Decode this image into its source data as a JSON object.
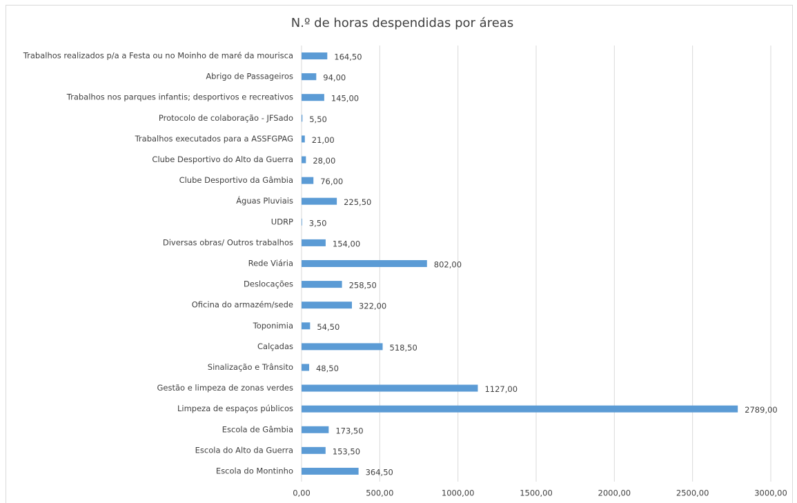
{
  "chart_data": {
    "type": "bar",
    "orientation": "horizontal",
    "title": "N.º de horas despendidas por áreas",
    "categories": [
      "Trabalhos realizados p/a a Festa ou no Moinho de maré da mourisca",
      "Abrigo de Passageiros",
      "Trabalhos nos parques infantis; desportivos e recreativos",
      "Protocolo de colaboração - JFSado",
      "Trabalhos executados para a ASSFGPAG",
      "Clube Desportivo do Alto da Guerra",
      "Clube Desportivo da Gâmbia",
      "Águas Pluviais",
      "UDRP",
      "Diversas obras/ Outros trabalhos",
      "Rede Viária",
      "Deslocações",
      "Oficina do armazém/sede",
      "Toponimia",
      "Calçadas",
      "Sinalização e Trânsito",
      "Gestão e limpeza de zonas verdes",
      "Limpeza de espaços públicos",
      "Escola de Gâmbia",
      "Escola do Alto da Guerra",
      "Escola do Montinho"
    ],
    "values": [
      164.5,
      94,
      145,
      5.5,
      21,
      28,
      76,
      225.5,
      3.5,
      154,
      802,
      258.5,
      322,
      54.5,
      518.5,
      48.5,
      1127,
      2789,
      173.5,
      153.5,
      364.5
    ],
    "value_labels": [
      "164,50",
      "94,00",
      "145,00",
      "5,50",
      "21,00",
      "28,00",
      "76,00",
      "225,50",
      "3,50",
      "154,00",
      "802,00",
      "258,50",
      "322,00",
      "54,50",
      "518,50",
      "48,50",
      "1127,00",
      "2789,00",
      "173,50",
      "153,50",
      "364,50"
    ],
    "color": "#5b9bd5",
    "xlim": [
      0,
      3000
    ],
    "xticks": [
      {
        "value": 0,
        "label": "0,00"
      },
      {
        "value": 500,
        "label": "500,00"
      },
      {
        "value": 1000,
        "label": "1000,00"
      },
      {
        "value": 1500,
        "label": "1500,00"
      },
      {
        "value": 2000,
        "label": "2000,00"
      },
      {
        "value": 2500,
        "label": "2500,00"
      },
      {
        "value": 3000,
        "label": "3000,00"
      }
    ],
    "grid": true
  }
}
